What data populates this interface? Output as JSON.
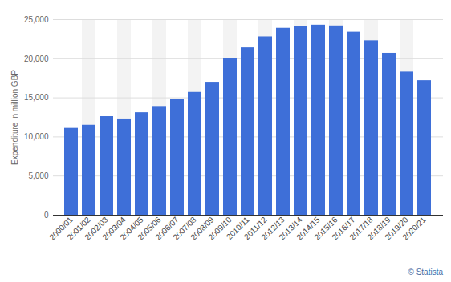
{
  "chart_data": {
    "type": "bar",
    "y_label": "Expenditure in million GBP",
    "caption": "© Statista",
    "categories": [
      "2000/01",
      "2001/02",
      "2002/03",
      "2003/04",
      "2004/05",
      "2005/06",
      "2006/07",
      "2007/08",
      "2008/09",
      "2009/10",
      "2010/11",
      "2011/12",
      "2012/13",
      "2013/14",
      "2014/15",
      "2015/16",
      "2016/17",
      "2017/18",
      "2018/19",
      "2019/20",
      "2020/21"
    ],
    "values": [
      11100,
      11500,
      12600,
      12300,
      13100,
      13900,
      14800,
      15700,
      17000,
      20000,
      21400,
      22800,
      23900,
      24100,
      24300,
      24200,
      23400,
      22300,
      20700,
      18300,
      17200
    ],
    "color": "#3e6fd8",
    "ylim": [
      0,
      25000
    ],
    "yticks": [
      0,
      {
        "value": 5000,
        "label": "5,000"
      },
      {
        "value": 10000,
        "label": "10,000"
      },
      {
        "value": 15000,
        "label": "15,000"
      },
      {
        "value": 20000,
        "label": "20,000"
      },
      {
        "value": 25000,
        "label": "25,000"
      }
    ],
    "grid": true
  }
}
